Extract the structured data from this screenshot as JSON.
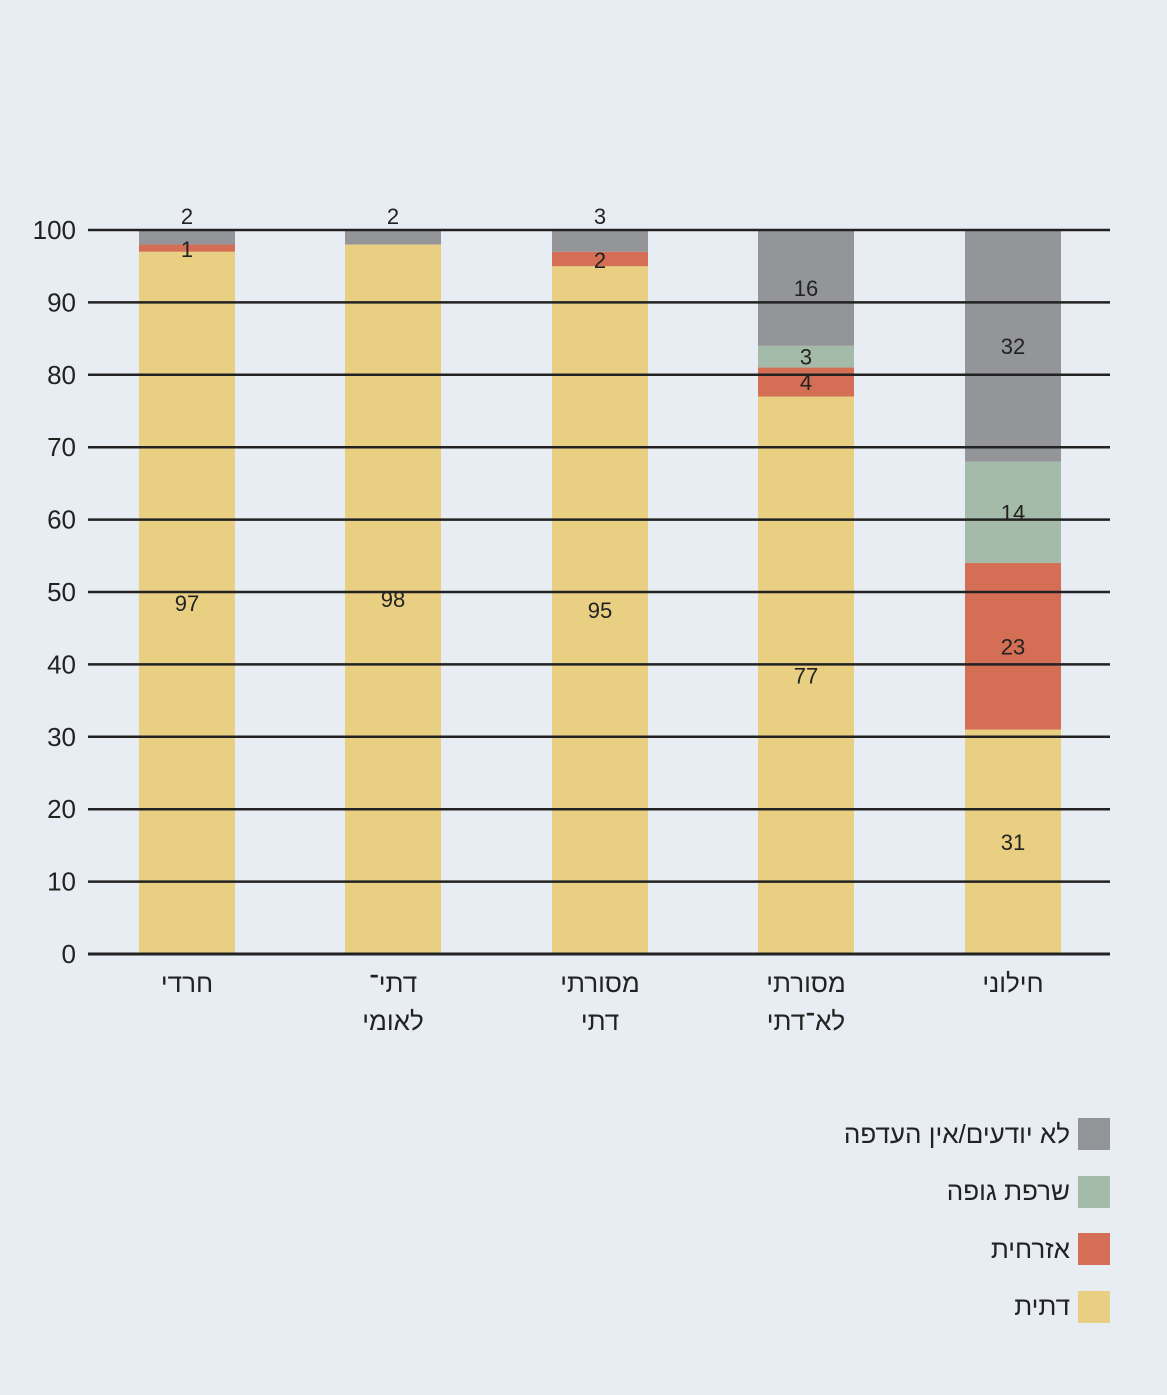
{
  "chart_data": {
    "type": "bar",
    "stacked": true,
    "title": "",
    "xlabel": "",
    "ylabel": "",
    "ylim": [
      0,
      100
    ],
    "yticks": [
      0,
      10,
      20,
      30,
      40,
      50,
      60,
      70,
      80,
      90,
      100
    ],
    "grid": true,
    "legend_position": "bottom-right",
    "categories": [
      [
        "חרדי"
      ],
      [
        "דתי־",
        "לאומי"
      ],
      [
        "מסורתי",
        "דתי"
      ],
      [
        "מסורתי",
        "לא־דתי"
      ],
      [
        "חילוני"
      ]
    ],
    "series": [
      {
        "name": "דתית",
        "color": "#e8cf82",
        "values": [
          97,
          98,
          95,
          77,
          31
        ]
      },
      {
        "name": "אזרחית",
        "color": "#d46f55",
        "values": [
          1,
          0,
          2,
          4,
          23
        ]
      },
      {
        "name": "שרפת גופה",
        "color": "#a3bba8",
        "values": [
          0,
          0,
          0,
          3,
          14
        ]
      },
      {
        "name": "לא יודעים/אין העדפה",
        "color": "#939598",
        "values": [
          2,
          2,
          3,
          16,
          32
        ]
      }
    ]
  }
}
